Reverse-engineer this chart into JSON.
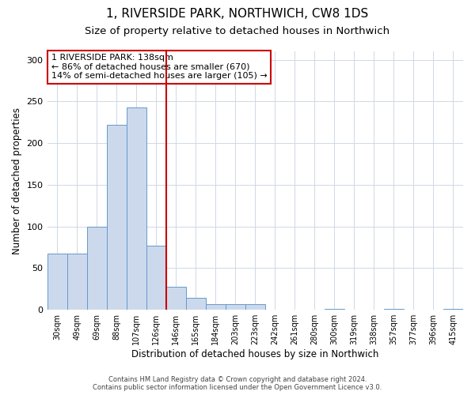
{
  "title": "1, RIVERSIDE PARK, NORTHWICH, CW8 1DS",
  "subtitle": "Size of property relative to detached houses in Northwich",
  "xlabel": "Distribution of detached houses by size in Northwich",
  "ylabel": "Number of detached properties",
  "bin_labels": [
    "30sqm",
    "49sqm",
    "69sqm",
    "88sqm",
    "107sqm",
    "126sqm",
    "146sqm",
    "165sqm",
    "184sqm",
    "203sqm",
    "223sqm",
    "242sqm",
    "261sqm",
    "280sqm",
    "300sqm",
    "319sqm",
    "338sqm",
    "357sqm",
    "377sqm",
    "396sqm",
    "415sqm"
  ],
  "bar_heights": [
    67,
    67,
    100,
    222,
    243,
    77,
    28,
    14,
    7,
    7,
    7,
    0,
    0,
    0,
    1,
    0,
    0,
    1,
    0,
    0,
    1
  ],
  "bar_color": "#ccd9ec",
  "bar_edge_color": "#6699cc",
  "ylim": [
    0,
    310
  ],
  "yticks": [
    0,
    50,
    100,
    150,
    200,
    250,
    300
  ],
  "vline_x_index": 6,
  "annotation_title": "1 RIVERSIDE PARK: 138sqm",
  "annotation_line1": "← 86% of detached houses are smaller (670)",
  "annotation_line2": "14% of semi-detached houses are larger (105) →",
  "annotation_box_color": "#ffffff",
  "annotation_box_edge": "#cc0000",
  "vline_color": "#cc0000",
  "footer_line1": "Contains HM Land Registry data © Crown copyright and database right 2024.",
  "footer_line2": "Contains public sector information licensed under the Open Government Licence v3.0.",
  "background_color": "#ffffff",
  "grid_color": "#d0d8e4",
  "title_fontsize": 11,
  "subtitle_fontsize": 9.5,
  "n_bins": 21,
  "bin_width": 1
}
